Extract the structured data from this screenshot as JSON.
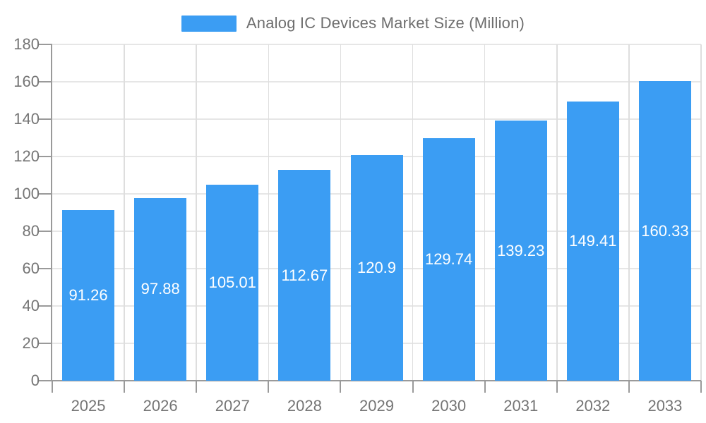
{
  "legend": {
    "label": "Analog IC Devices Market Size (Million)"
  },
  "chart_data": {
    "type": "bar",
    "title": "Analog IC Devices Market Size (Million)",
    "categories": [
      "2025",
      "2026",
      "2027",
      "2028",
      "2029",
      "2030",
      "2031",
      "2032",
      "2033"
    ],
    "values": [
      91.26,
      97.88,
      105.01,
      112.67,
      120.9,
      129.74,
      139.23,
      149.41,
      160.33
    ],
    "data_labels": [
      "91.26",
      "97.88",
      "105.01",
      "112.67",
      "120.9",
      "129.74",
      "139.23",
      "149.41",
      "160.33"
    ],
    "xlabel": "",
    "ylabel": "",
    "ylim": [
      0,
      180
    ],
    "y_ticks": [
      0,
      20,
      40,
      60,
      80,
      100,
      120,
      140,
      160,
      180
    ],
    "grid": true,
    "legend_position": "top-center",
    "colors": {
      "bar": "#3B9DF3",
      "grid_horizontal": "#E6E6E6",
      "grid_vertical": "#DEDEDE",
      "axis": "#9A9A9A",
      "tick_label": "#757575",
      "data_label": "#FFFFFF",
      "legend_text": "#6E6E6E"
    }
  }
}
